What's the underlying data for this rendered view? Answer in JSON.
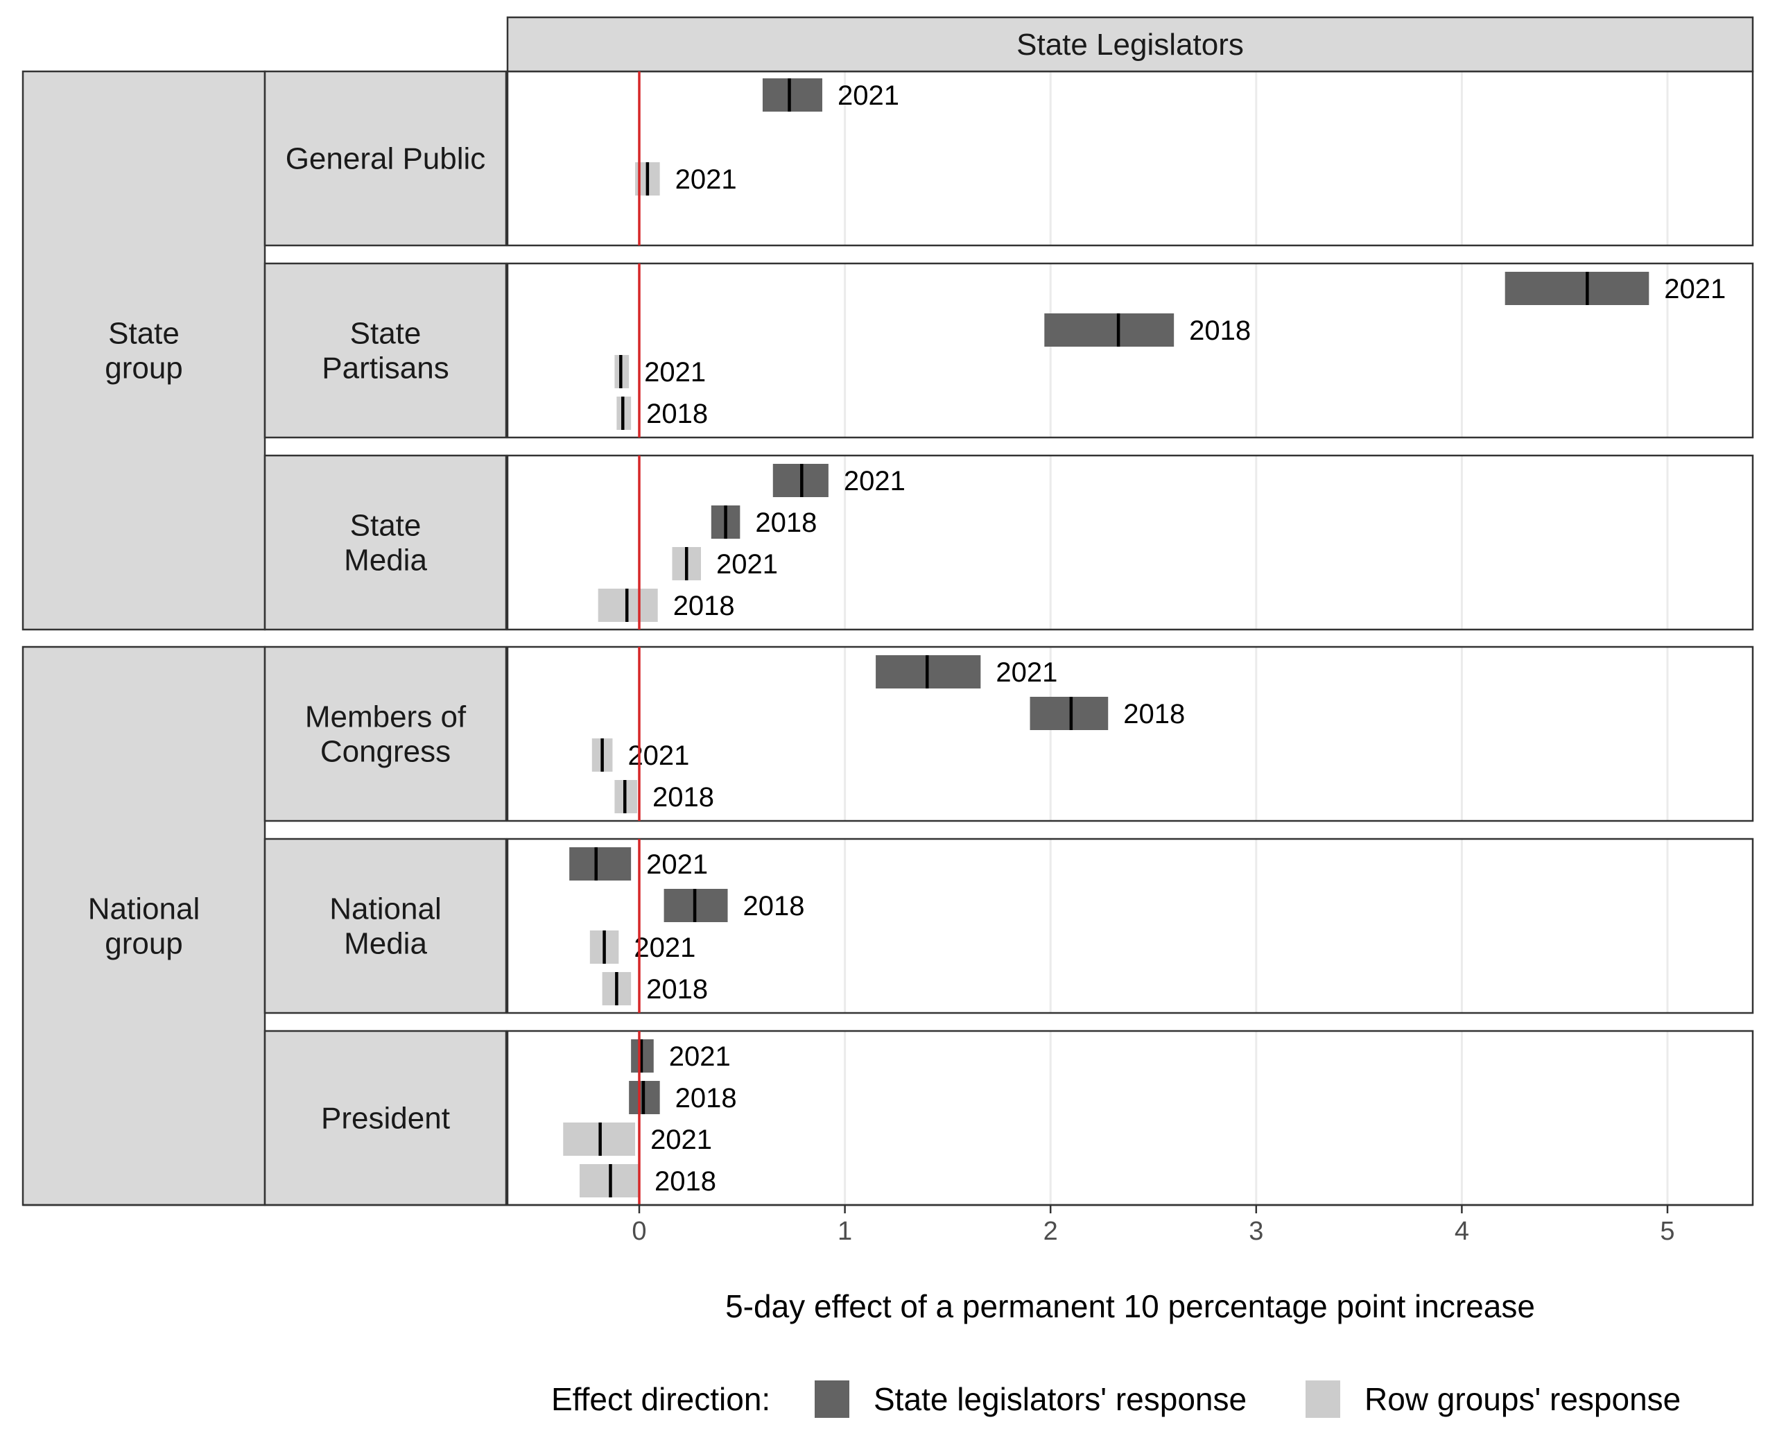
{
  "chart_data": {
    "type": "bar",
    "facet_title": "State Legislators",
    "xlabel": "5-day effect of a permanent 10 percentage point increase",
    "xlim": [
      -0.65,
      5.4
    ],
    "x_ticks": [
      0,
      1,
      2,
      3,
      4,
      5
    ],
    "grid": true,
    "reference_line": {
      "x": 0,
      "color": "#d62728"
    },
    "legend": {
      "position": "bottom",
      "title": "Effect direction:",
      "entries": [
        {
          "key": "legislators",
          "label": "State legislators' response",
          "color": "#636363"
        },
        {
          "key": "row",
          "label": "Row groups' response",
          "color": "#cccccc"
        }
      ]
    },
    "groups": [
      {
        "label": "State group",
        "label_lines": [
          "State",
          "group"
        ],
        "panels": [
          {
            "label": "General Public",
            "label_lines": [
              "General Public"
            ],
            "slots": 2,
            "bars": [
              {
                "series": "legislators",
                "year": "2021",
                "low": 0.6,
                "high": 0.89,
                "est": 0.73
              },
              {
                "series": "row",
                "year": "2021",
                "low": -0.02,
                "high": 0.1,
                "est": 0.04
              }
            ]
          },
          {
            "label": "State Partisans",
            "label_lines": [
              "State",
              "Partisans"
            ],
            "slots": 4,
            "bars": [
              {
                "series": "legislators",
                "year": "2021",
                "low": 4.21,
                "high": 4.91,
                "est": 4.61
              },
              {
                "series": "legislators",
                "year": "2018",
                "low": 1.97,
                "high": 2.6,
                "est": 2.33
              },
              {
                "series": "row",
                "year": "2021",
                "low": -0.12,
                "high": -0.05,
                "est": -0.09
              },
              {
                "series": "row",
                "year": "2018",
                "low": -0.11,
                "high": -0.04,
                "est": -0.08
              }
            ]
          },
          {
            "label": "State Media",
            "label_lines": [
              "State",
              "Media"
            ],
            "slots": 4,
            "bars": [
              {
                "series": "legislators",
                "year": "2021",
                "low": 0.65,
                "high": 0.92,
                "est": 0.79
              },
              {
                "series": "legislators",
                "year": "2018",
                "low": 0.35,
                "high": 0.49,
                "est": 0.42
              },
              {
                "series": "row",
                "year": "2021",
                "low": 0.16,
                "high": 0.3,
                "est": 0.23
              },
              {
                "series": "row",
                "year": "2018",
                "low": -0.2,
                "high": 0.09,
                "est": -0.06
              }
            ]
          }
        ]
      },
      {
        "label": "National group",
        "label_lines": [
          "National",
          "group"
        ],
        "panels": [
          {
            "label": "Members of Congress",
            "label_lines": [
              "Members of",
              "Congress"
            ],
            "slots": 4,
            "bars": [
              {
                "series": "legislators",
                "year": "2021",
                "low": 1.15,
                "high": 1.66,
                "est": 1.4
              },
              {
                "series": "legislators",
                "year": "2018",
                "low": 1.9,
                "high": 2.28,
                "est": 2.1
              },
              {
                "series": "row",
                "year": "2021",
                "low": -0.23,
                "high": -0.13,
                "est": -0.18
              },
              {
                "series": "row",
                "year": "2018",
                "low": -0.12,
                "high": -0.01,
                "est": -0.07
              }
            ]
          },
          {
            "label": "National Media",
            "label_lines": [
              "National",
              "Media"
            ],
            "slots": 4,
            "bars": [
              {
                "series": "legislators",
                "year": "2021",
                "low": -0.34,
                "high": -0.04,
                "est": -0.21
              },
              {
                "series": "legislators",
                "year": "2018",
                "low": 0.12,
                "high": 0.43,
                "est": 0.27
              },
              {
                "series": "row",
                "year": "2021",
                "low": -0.24,
                "high": -0.1,
                "est": -0.17
              },
              {
                "series": "row",
                "year": "2018",
                "low": -0.18,
                "high": -0.04,
                "est": -0.11
              }
            ]
          },
          {
            "label": "President",
            "label_lines": [
              "President"
            ],
            "slots": 4,
            "bars": [
              {
                "series": "legislators",
                "year": "2021",
                "low": -0.04,
                "high": 0.07,
                "est": 0.01
              },
              {
                "series": "legislators",
                "year": "2018",
                "low": -0.05,
                "high": 0.1,
                "est": 0.02
              },
              {
                "series": "row",
                "year": "2021",
                "low": -0.37,
                "high": -0.02,
                "est": -0.19
              },
              {
                "series": "row",
                "year": "2018",
                "low": -0.29,
                "high": 0.0,
                "est": -0.14
              }
            ]
          }
        ]
      }
    ]
  }
}
